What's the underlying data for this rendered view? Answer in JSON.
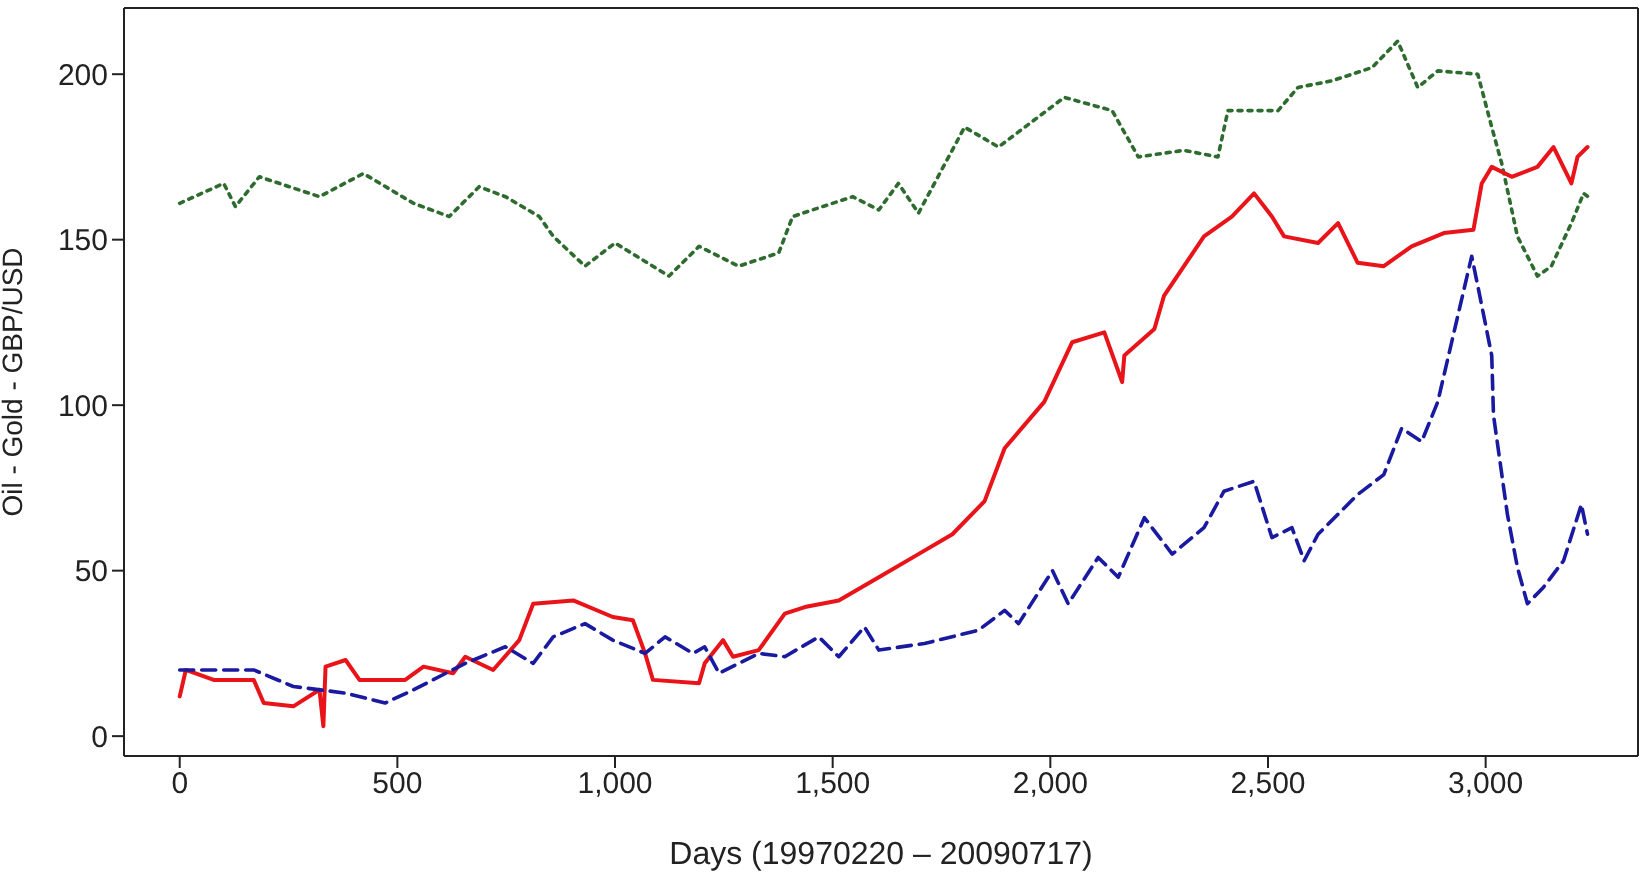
{
  "chart_data": {
    "type": "line",
    "xlabel": "Days (19970220 – 20090717)",
    "ylabel": "Oil - Gold - GBP/USD",
    "xlim": [
      -128,
      3350
    ],
    "ylim": [
      -6,
      220
    ],
    "xticks": [
      0,
      500,
      {
        "value": 1000,
        "label": "1,000"
      },
      {
        "value": 1500,
        "label": "1,500"
      },
      {
        "value": 2000,
        "label": "2,000"
      },
      {
        "value": 2500,
        "label": "2,500"
      },
      {
        "value": 3000,
        "label": "3,000"
      }
    ],
    "yticks": [
      0,
      50,
      100,
      150,
      200
    ],
    "grid": false,
    "marker": "none",
    "series": [
      {
        "color": "#2e6b2e",
        "line_style": "dotted",
        "x": [
          0,
          101,
          128,
          183,
          321,
          422,
          537,
          619,
          688,
          748,
          826,
          858,
          931,
          1000,
          1124,
          1193,
          1284,
          1376,
          1408,
          1546,
          1606,
          1651,
          1697,
          1803,
          1881,
          2032,
          2142,
          2202,
          2307,
          2385,
          2408,
          2523,
          2569,
          2647,
          2739,
          2798,
          2844,
          2890,
          2982,
          3014,
          3037,
          3073,
          3119,
          3151,
          3197,
          3225,
          3235
        ],
        "values": [
          161,
          167,
          160,
          169,
          163,
          170,
          161,
          157,
          166,
          163,
          157,
          151,
          142,
          149,
          139,
          148,
          142,
          146,
          157,
          163,
          159,
          167,
          158,
          184,
          178,
          193,
          189,
          175,
          177,
          175,
          189,
          189,
          196,
          198,
          202,
          210,
          196,
          201,
          200,
          184,
          173,
          151,
          139,
          142,
          155,
          164,
          163
        ]
      },
      {
        "color": "#e8141a",
        "line_style": "solid",
        "x": [
          0,
          14,
          78,
          170,
          193,
          261,
          321,
          330,
          335,
          381,
          413,
          518,
          560,
          628,
          656,
          720,
          780,
          812,
          904,
          995,
          1041,
          1069,
          1087,
          1193,
          1206,
          1248,
          1271,
          1330,
          1390,
          1436,
          1514,
          1606,
          1697,
          1775,
          1849,
          1895,
          1986,
          2050,
          2124,
          2165,
          2170,
          2239,
          2261,
          2307,
          2353,
          2417,
          2468,
          2509,
          2537,
          2615,
          2661,
          2706,
          2766,
          2830,
          2904,
          2972,
          2991,
          3014,
          3060,
          3119,
          3156,
          3197,
          3211,
          3234
        ],
        "values": [
          12,
          20,
          17,
          17,
          10,
          9,
          14,
          3,
          21,
          23,
          17,
          17,
          21,
          19,
          24,
          20,
          29,
          40,
          41,
          36,
          35,
          25,
          17,
          16,
          22,
          29,
          24,
          26,
          37,
          39,
          41,
          48,
          55,
          61,
          71,
          87,
          101,
          119,
          122,
          107,
          115,
          123,
          133,
          142,
          151,
          157,
          164,
          157,
          151,
          149,
          155,
          143,
          142,
          148,
          152,
          153,
          167,
          172,
          169,
          172,
          178,
          167,
          175,
          178
        ]
      },
      {
        "color": "#1a1aa0",
        "line_style": "dashed",
        "x": [
          0,
          170,
          261,
          381,
          472,
          537,
          656,
          748,
          812,
          858,
          931,
          995,
          1069,
          1115,
          1179,
          1206,
          1239,
          1330,
          1390,
          1468,
          1514,
          1573,
          1606,
          1711,
          1835,
          1895,
          1927,
          2005,
          2041,
          2110,
          2156,
          2216,
          2280,
          2353,
          2399,
          2468,
          2509,
          2555,
          2583,
          2615,
          2706,
          2766,
          2807,
          2853,
          2890,
          2968,
          2982,
          3014,
          3018,
          3050,
          3073,
          3096,
          3133,
          3179,
          3220,
          3234
        ],
        "values": [
          20,
          20,
          15,
          13,
          10,
          14,
          22,
          27,
          22,
          30,
          34,
          29,
          25,
          30,
          25,
          27,
          19,
          25,
          24,
          30,
          24,
          33,
          26,
          28,
          32,
          38,
          34,
          50,
          40,
          54,
          48,
          66,
          55,
          63,
          74,
          77,
          60,
          63,
          53,
          61,
          73,
          79,
          93,
          89,
          101,
          145,
          136,
          115,
          97,
          67,
          51,
          40,
          45,
          53,
          70,
          61
        ]
      }
    ]
  }
}
